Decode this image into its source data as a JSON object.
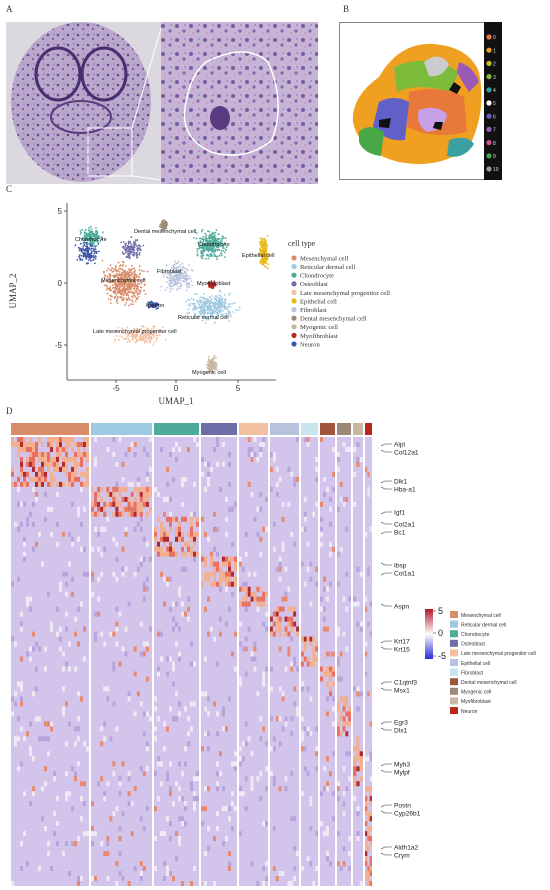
{
  "panels": {
    "a": "A",
    "b": "B",
    "c": "C",
    "d": "D"
  },
  "panel_b": {
    "clusters": [
      {
        "label": "0",
        "color": "#e8793a"
      },
      {
        "label": "1",
        "color": "#f0a020"
      },
      {
        "label": "2",
        "color": "#c8c020"
      },
      {
        "label": "3",
        "color": "#7dbb3a"
      },
      {
        "label": "4",
        "color": "#3aa0a0"
      },
      {
        "label": "5",
        "color": "#ffffff"
      },
      {
        "label": "6",
        "color": "#6060c8"
      },
      {
        "label": "7",
        "color": "#9b59b6"
      },
      {
        "label": "8",
        "color": "#d05090"
      },
      {
        "label": "9",
        "color": "#48a848"
      },
      {
        "label": "10",
        "color": "#999999"
      }
    ]
  },
  "umap": {
    "xlabel": "UMAP_1",
    "ylabel": "UMAP_2",
    "xticks": [
      "-5",
      "0",
      "5"
    ],
    "yticks": [
      "5",
      "0",
      "-5"
    ],
    "legend_title": "cell type",
    "legend": [
      {
        "name": "Mesenchymal cell",
        "color": "#d98c6a"
      },
      {
        "name": "Reticular dermal cell",
        "color": "#9ec9e2"
      },
      {
        "name": "Chondrocyte",
        "color": "#4dab9a"
      },
      {
        "name": "Osteoblast",
        "color": "#6d6da8"
      },
      {
        "name": "Late mesenchymal progenitor cell",
        "color": "#f2bfa0"
      },
      {
        "name": "Epithelial cell",
        "color": "#e8b820"
      },
      {
        "name": "Fibroblast",
        "color": "#b7c2dd"
      },
      {
        "name": "Dental mesenchymal cell",
        "color": "#9b8a78"
      },
      {
        "name": "Myogenic cell",
        "color": "#c9b8a0"
      },
      {
        "name": "Myofibroblast",
        "color": "#b8261e"
      },
      {
        "name": "Neuron",
        "color": "#3d57a8"
      }
    ],
    "cluster_labels": {
      "dental": "Dental mesenchymal cell",
      "chondrocyte1": "Chondrocyte",
      "chondrocyte2": "Chondrocyte",
      "epithelial": "Epithelial cell",
      "fibroblast": "Fibroblast",
      "mesenchymal": "Mesenchymal cell",
      "myofibroblast": "Myofibroblast",
      "neuron": "Neuron",
      "reticular": "Reticular dermal cell",
      "late": "Late mesenchymal progenitor cell",
      "myogenic": "Myogenic cell"
    }
  },
  "heatmap": {
    "genes": [
      "Alpl",
      "Col12a1",
      "Dlk1",
      "Hba-a1",
      "Igf1",
      "Col2a1",
      "Bc1",
      "Ibsp",
      "Col1a1",
      "Aspn",
      "Krt17",
      "Krt15",
      "C1qtnf3",
      "Msx1",
      "Egr3",
      "Dlx1",
      "Myh3",
      "Mylpf",
      "Postn",
      "Cyp26b1",
      "Aldh1a2",
      "Crym"
    ],
    "scale_ticks": [
      "5",
      "0",
      "-5"
    ],
    "legend": [
      {
        "name": "Mesenchymal cell",
        "color": "#d98c6a"
      },
      {
        "name": "Reticular dermal cell",
        "color": "#9ec9e2"
      },
      {
        "name": "Chondrocyte",
        "color": "#4dab9a"
      },
      {
        "name": "Osteoblast",
        "color": "#6d6da8"
      },
      {
        "name": "Late mesenchymal progenitor cell",
        "color": "#f2bfa0"
      },
      {
        "name": "Epithelial cell",
        "color": "#b7c2dd"
      },
      {
        "name": "Fibroblast",
        "color": "#c8e4ec"
      },
      {
        "name": "Dental mesenchymal cell",
        "color": "#a0543a"
      },
      {
        "name": "Myogenic cell",
        "color": "#9b8a78"
      },
      {
        "name": "Myofibroblast",
        "color": "#c9b8a0"
      },
      {
        "name": "Neuron",
        "color": "#b8261e"
      }
    ]
  }
}
